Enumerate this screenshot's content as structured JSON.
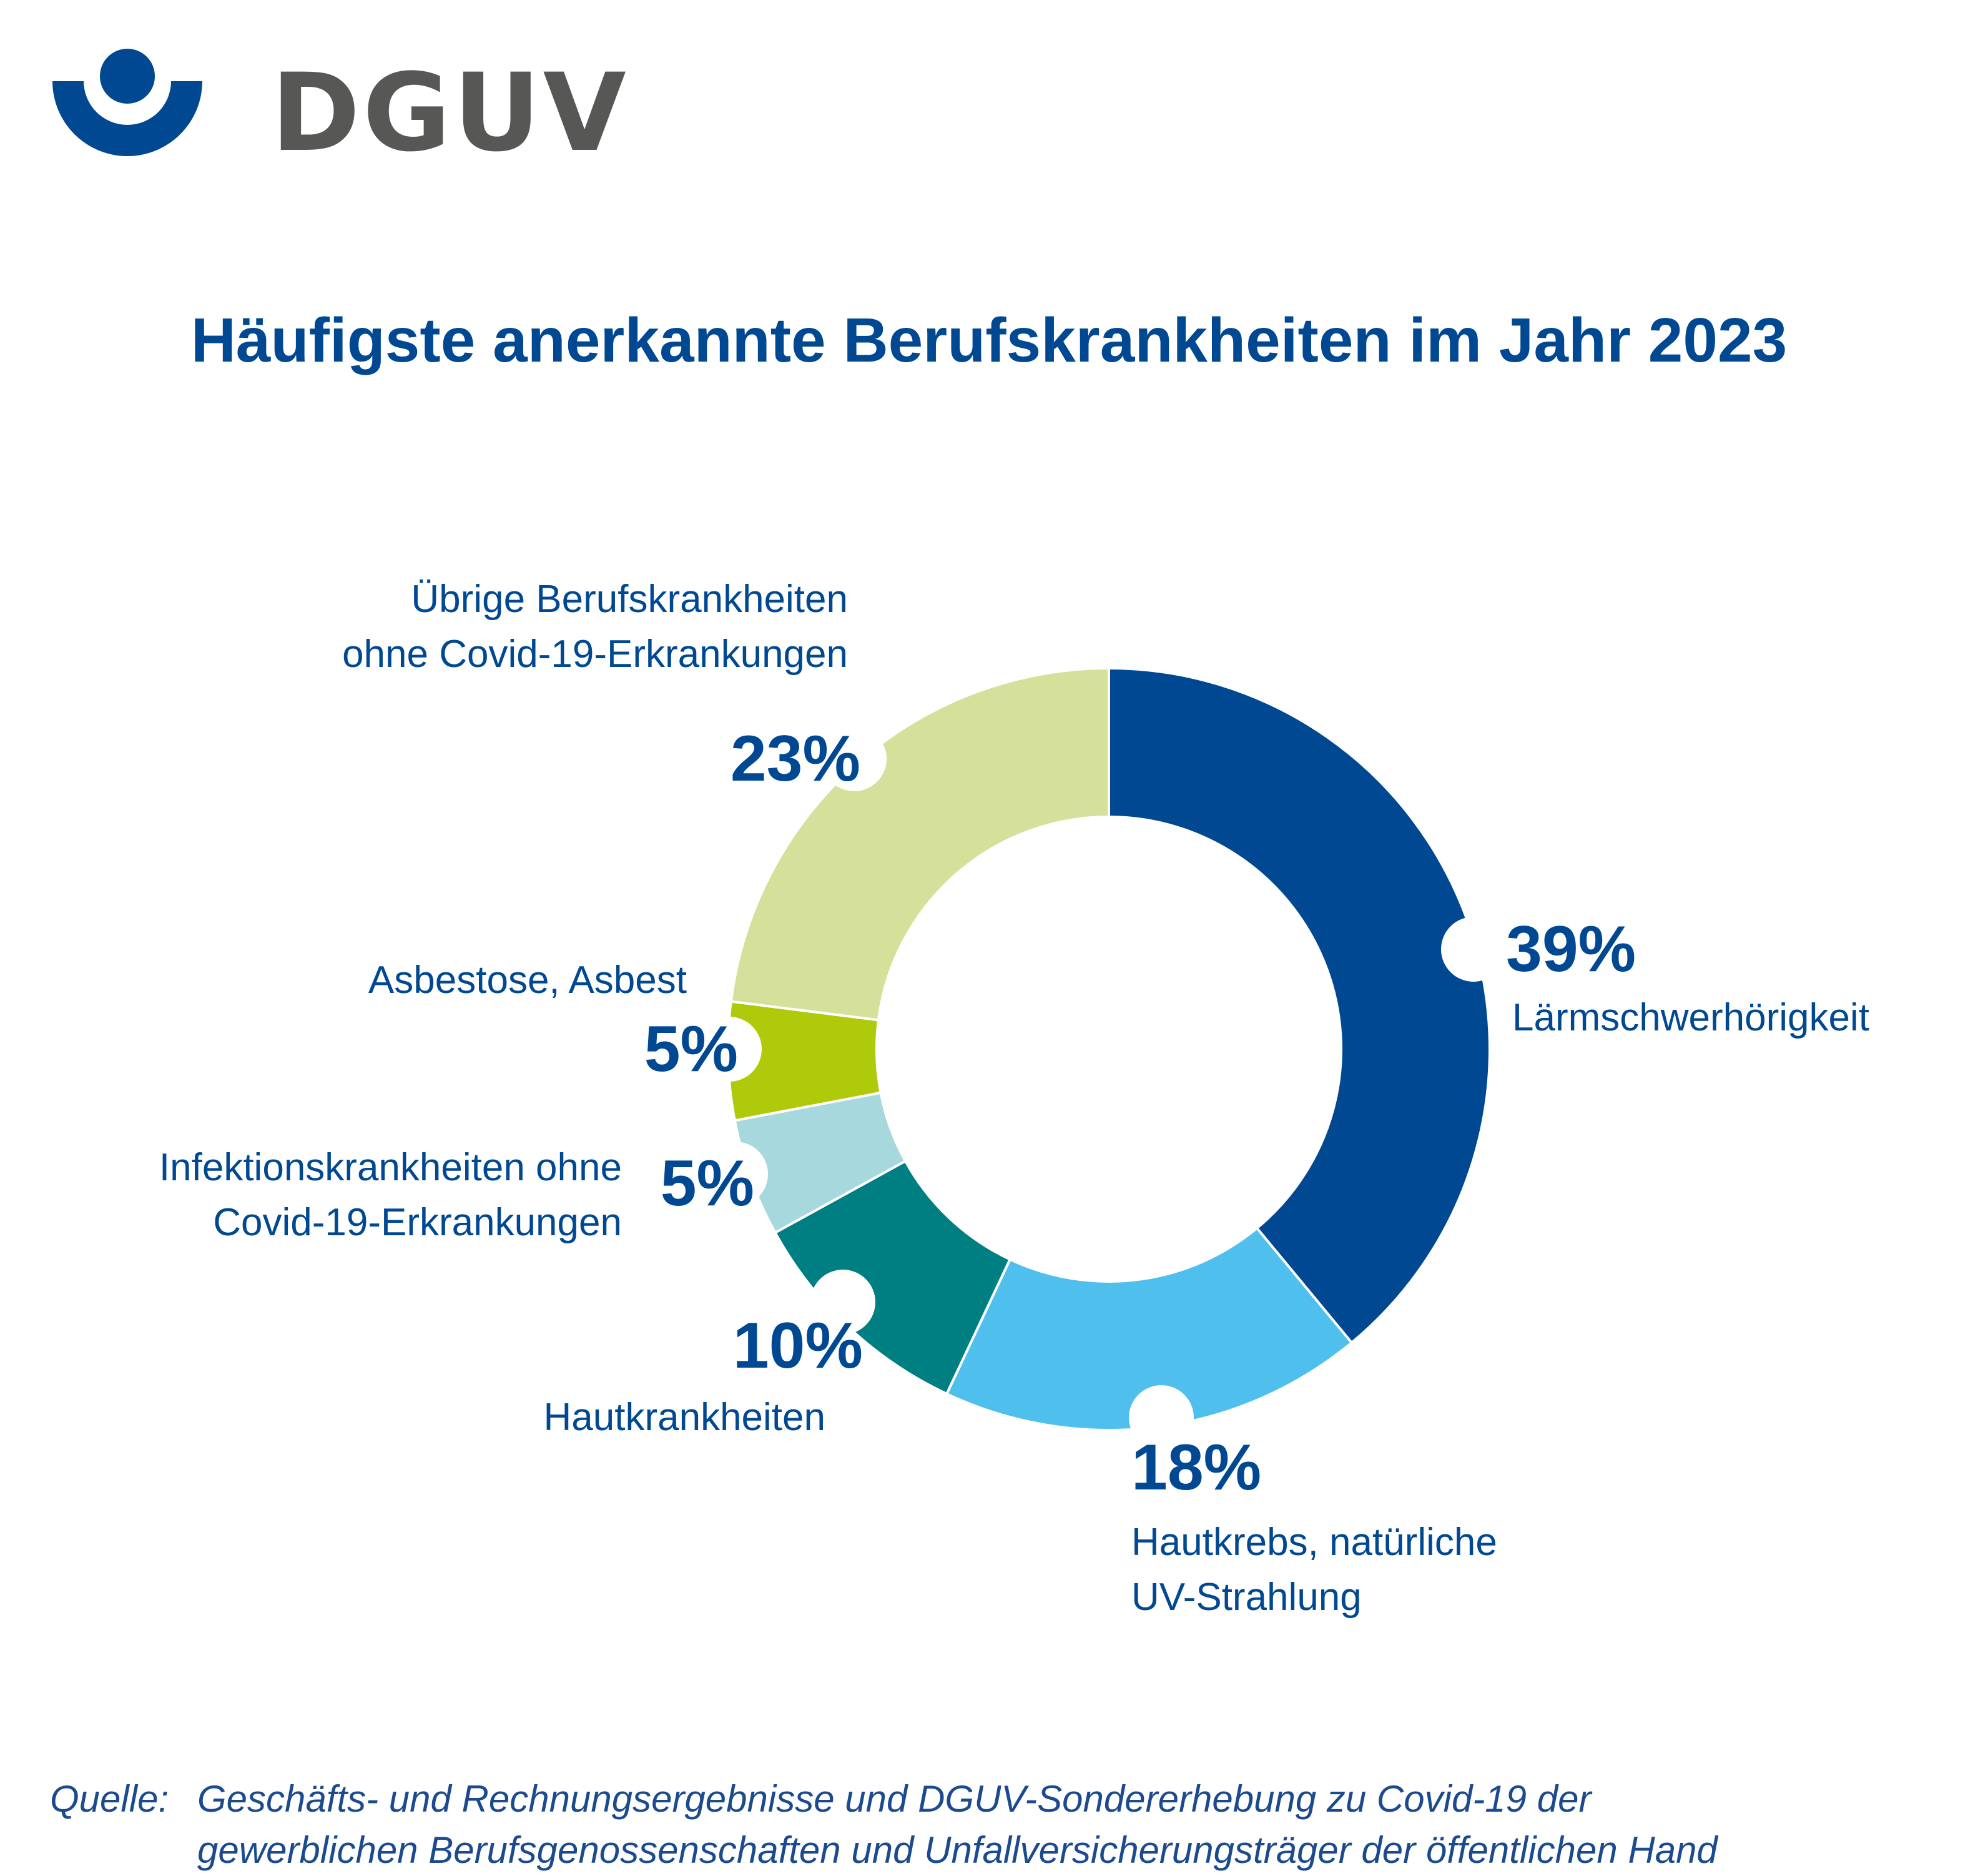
{
  "brand": {
    "name": "DGUV",
    "colors": {
      "navy": "#004892",
      "grey": "#575756",
      "dark_blue": "#1b4a8e"
    }
  },
  "title": "Häufigste anerkannte Berufskrankheiten im Jahr 2023",
  "chart_data": {
    "type": "pie",
    "variant": "donut",
    "title": "Häufigste anerkannte Berufskrankheiten im Jahr 2023",
    "unit": "%",
    "start": "top, clockwise",
    "slices": [
      {
        "label": "Lärmschwerhörigkeit",
        "value": 39,
        "value_label": "39%",
        "label_lines": [
          "Lärmschwerhörigkeit"
        ],
        "color": "#004892"
      },
      {
        "label": "Hautkrebs, natürliche UV-Strahlung",
        "value": 18,
        "value_label": "18%",
        "label_lines": [
          "Hautkrebs, natürliche",
          "UV-Strahlung"
        ],
        "color": "#4fbfee"
      },
      {
        "label": "Hautkrankheiten",
        "value": 10,
        "value_label": "10%",
        "label_lines": [
          "Hautkrankheiten"
        ],
        "color": "#007f83"
      },
      {
        "label": "Infektionskrankheiten ohne Covid-19-Erkrankungen",
        "value": 5,
        "value_label": "5%",
        "label_lines": [
          "Infektionskrankheiten ohne",
          "Covid-19-Erkrankungen"
        ],
        "color": "#a7d8de"
      },
      {
        "label": "Asbestose, Asbest",
        "value": 5,
        "value_label": "5%",
        "label_lines": [
          "Asbestose, Asbest"
        ],
        "color": "#afca0b"
      },
      {
        "label": "Übrige Berufskrankheiten ohne Covid-19-Erkrankungen",
        "value": 23,
        "value_label": "23%",
        "label_lines": [
          "Übrige Berufskrankheiten",
          "ohne Covid-19-Erkrankungen"
        ],
        "color": "#d5e09a"
      }
    ]
  },
  "source": {
    "label": "Quelle:",
    "line1": "Geschäfts- und Rechnungsergebnisse und DGUV-Sondererhebung zu Covid-19 der",
    "line2": "gewerblichen Berufsgenossenschaften und Unfallversicherungsträger der öffentlichen Hand"
  }
}
